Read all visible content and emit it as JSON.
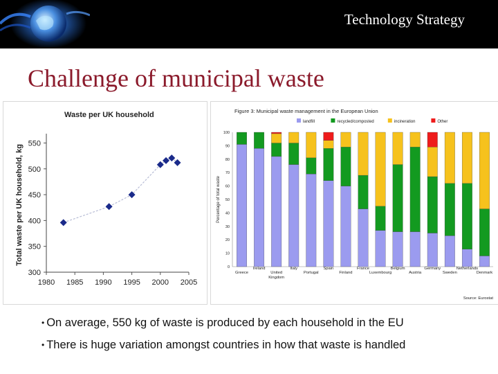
{
  "header": {
    "title": "Technology Strategy"
  },
  "slide": {
    "title": "Challenge of municipal waste"
  },
  "chart_data": [
    {
      "type": "scatter",
      "title": "Waste per UK household",
      "xlabel": "",
      "ylabel": "Total waste per UK household, kg",
      "xlim": [
        1980,
        2005
      ],
      "ylim": [
        300,
        560
      ],
      "xticks": [
        1980,
        1985,
        1990,
        1995,
        2000,
        2005
      ],
      "yticks": [
        300,
        350,
        400,
        450,
        500,
        550
      ],
      "points": [
        {
          "x": 1983,
          "y": 396
        },
        {
          "x": 1991,
          "y": 427
        },
        {
          "x": 1995,
          "y": 450
        },
        {
          "x": 2000,
          "y": 508
        },
        {
          "x": 2001,
          "y": 516
        },
        {
          "x": 2002,
          "y": 521
        },
        {
          "x": 2003,
          "y": 512
        }
      ],
      "colors": {
        "marker": "#1a2a8a",
        "trend": "#b8bdd6"
      }
    },
    {
      "type": "bar",
      "stacked": true,
      "title": "Figure 3: Municipal waste management in the European Union",
      "ylabel": "Percentage of total waste",
      "ylim": [
        0,
        100
      ],
      "yticks": [
        0,
        10,
        20,
        30,
        40,
        50,
        60,
        70,
        80,
        90,
        100
      ],
      "legend_position": "top",
      "source": "Source: Eurostat",
      "categories": [
        "Greece",
        "Ireland",
        "United Kingdom",
        "Italy",
        "Portugal",
        "Spain",
        "Finland",
        "France",
        "Luxembourg",
        "Belgium",
        "Austria",
        "Germany",
        "Sweden",
        "Netherlands",
        "Denmark"
      ],
      "series": [
        {
          "name": "landfill",
          "color": "#9b9bef",
          "values": [
            91,
            88,
            82,
            76,
            69,
            64,
            60,
            43,
            27,
            26,
            26,
            25,
            23,
            13,
            8
          ]
        },
        {
          "name": "recycled/composted",
          "color": "#139a20",
          "values": [
            9,
            12,
            10,
            16,
            12,
            24,
            29,
            25,
            18,
            50,
            63,
            42,
            39,
            49,
            35
          ]
        },
        {
          "name": "incineration",
          "color": "#f6c21d",
          "values": [
            0,
            0,
            7,
            8,
            19,
            6,
            11,
            32,
            55,
            24,
            11,
            22,
            38,
            38,
            57
          ]
        },
        {
          "name": "Other",
          "color": "#ee1c1c",
          "values": [
            0,
            0,
            1,
            0,
            0,
            6,
            0,
            0,
            0,
            0,
            0,
            11,
            0,
            0,
            0
          ]
        }
      ]
    }
  ],
  "bullets": [
    "On average, 550 kg of waste is produced by each household in the EU",
    "There is huge variation amongst countries in how that waste is handled"
  ]
}
